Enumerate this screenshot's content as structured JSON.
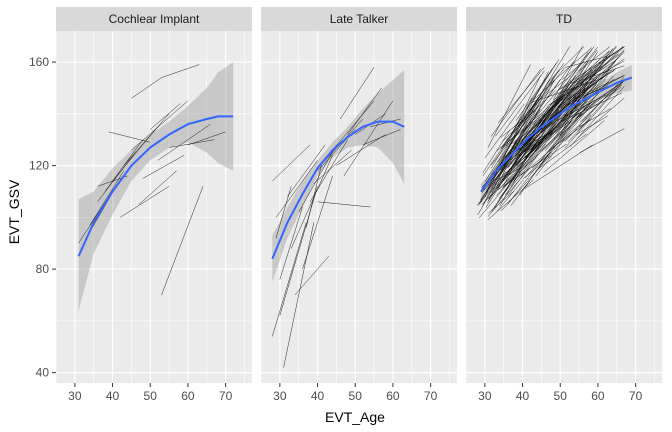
{
  "chart_data": {
    "type": "line",
    "xlabel": "EVT_Age",
    "ylabel": "EVT_GSV",
    "xlim": [
      25,
      77
    ],
    "ylim": [
      36,
      172
    ],
    "x_ticks": [
      30,
      40,
      50,
      60,
      70
    ],
    "y_ticks": [
      40,
      80,
      120,
      160
    ],
    "grid": true,
    "panels": [
      {
        "label": "Cochlear Implant",
        "smooth": {
          "x": [
            31,
            35,
            40,
            45,
            50,
            55,
            60,
            65,
            68,
            72
          ],
          "y": [
            85,
            98,
            110,
            120,
            127,
            132,
            136,
            138,
            139,
            139
          ],
          "lower": [
            64,
            86,
            101,
            114,
            122,
            127,
            129,
            125,
            121,
            118
          ],
          "upper": [
            107,
            110,
            119,
            126,
            132,
            137,
            143,
            150,
            156,
            160
          ]
        },
        "subjects": [
          [
            [
              31,
              90
            ],
            [
              39,
              108
            ]
          ],
          [
            [
              33,
              92
            ],
            [
              41,
              112
            ]
          ],
          [
            [
              34,
              97
            ],
            [
              43,
              118
            ]
          ],
          [
            [
              36,
              106
            ],
            [
              46,
              125
            ]
          ],
          [
            [
              38,
              110
            ],
            [
              48,
              130
            ]
          ],
          [
            [
              40,
              114
            ],
            [
              52,
              135
            ]
          ],
          [
            [
              43,
              120
            ],
            [
              55,
              140
            ]
          ],
          [
            [
              45,
              126
            ],
            [
              60,
              145
            ]
          ],
          [
            [
              39,
              133
            ],
            [
              50,
              129
            ]
          ],
          [
            [
              45,
              146
            ],
            [
              53,
              154
            ],
            [
              63,
              159
            ]
          ],
          [
            [
              50,
              134
            ],
            [
              58,
              144
            ]
          ],
          [
            [
              47,
              105
            ],
            [
              57,
              118
            ]
          ],
          [
            [
              52,
              122
            ],
            [
              66,
              136
            ]
          ],
          [
            [
              55,
              127
            ],
            [
              67,
              130
            ]
          ],
          [
            [
              42,
              100
            ],
            [
              55,
              112
            ]
          ],
          [
            [
              60,
              128
            ],
            [
              70,
              133
            ]
          ],
          [
            [
              36,
              112
            ],
            [
              44,
              116
            ]
          ],
          [
            [
              53,
              70
            ],
            [
              64,
              112
            ]
          ],
          [
            [
              48,
              115
            ],
            [
              59,
              124
            ]
          ],
          [
            [
              34,
              95
            ],
            [
              40,
              110
            ]
          ]
        ]
      },
      {
        "label": "Late Talker",
        "smooth": {
          "x": [
            28,
            32,
            36,
            40,
            44,
            48,
            52,
            56,
            60,
            63
          ],
          "y": [
            84,
            98,
            109,
            119,
            126,
            131,
            135,
            137,
            137,
            135
          ],
          "lower": [
            75,
            92,
            104,
            116,
            123,
            127,
            128,
            127,
            121,
            113
          ],
          "upper": [
            93,
            104,
            114,
            122,
            129,
            135,
            142,
            148,
            153,
            157
          ]
        },
        "subjects": [
          [
            [
              28,
              114
            ],
            [
              38,
              128
            ]
          ],
          [
            [
              29,
              100
            ],
            [
              40,
              122
            ]
          ],
          [
            [
              30,
              62
            ],
            [
              40,
              112
            ]
          ],
          [
            [
              31,
              42
            ],
            [
              39,
              98
            ]
          ],
          [
            [
              28,
              54
            ],
            [
              37,
              98
            ]
          ],
          [
            [
              33,
              88
            ],
            [
              44,
              124
            ]
          ],
          [
            [
              35,
              102
            ],
            [
              45,
              128
            ]
          ],
          [
            [
              36,
              80
            ],
            [
              44,
              116
            ]
          ],
          [
            [
              38,
              106
            ],
            [
              48,
              130
            ]
          ],
          [
            [
              40,
              118
            ],
            [
              50,
              134
            ]
          ],
          [
            [
              42,
              122
            ],
            [
              52,
              138
            ]
          ],
          [
            [
              44,
              126
            ],
            [
              55,
              145
            ]
          ],
          [
            [
              46,
              138
            ],
            [
              55,
              158
            ]
          ],
          [
            [
              48,
              132
            ],
            [
              57,
              150
            ]
          ],
          [
            [
              50,
              132
            ],
            [
              58,
              140
            ]
          ],
          [
            [
              52,
              128
            ],
            [
              62,
              134
            ]
          ],
          [
            [
              40,
              106
            ],
            [
              54,
              104
            ]
          ],
          [
            [
              34,
              70
            ],
            [
              43,
              85
            ]
          ],
          [
            [
              45,
              120
            ],
            [
              58,
              132
            ]
          ],
          [
            [
              30,
              76
            ],
            [
              36,
              104
            ]
          ],
          [
            [
              37,
              96
            ],
            [
              41,
              120
            ]
          ],
          [
            [
              54,
              135
            ],
            [
              62,
              138
            ]
          ],
          [
            [
              32,
              108
            ],
            [
              42,
              128
            ]
          ],
          [
            [
              47,
              116
            ],
            [
              60,
              145
            ]
          ],
          [
            [
              29,
              92
            ],
            [
              33,
              112
            ]
          ],
          [
            [
              39,
              113
            ],
            [
              49,
              126
            ]
          ]
        ]
      },
      {
        "label": "TD",
        "smooth": {
          "x": [
            29,
            33,
            37,
            41,
            45,
            49,
            53,
            57,
            61,
            65,
            69
          ],
          "y": [
            110,
            118,
            124,
            130,
            135,
            139,
            143,
            146,
            149,
            152,
            154
          ],
          "lower": [
            107,
            116,
            123,
            129,
            134,
            138,
            141,
            144,
            146,
            148,
            149
          ],
          "upper": [
            113,
            120,
            126,
            131,
            136,
            140,
            145,
            148,
            152,
            156,
            159
          ]
        },
        "subjects": []
      }
    ]
  }
}
